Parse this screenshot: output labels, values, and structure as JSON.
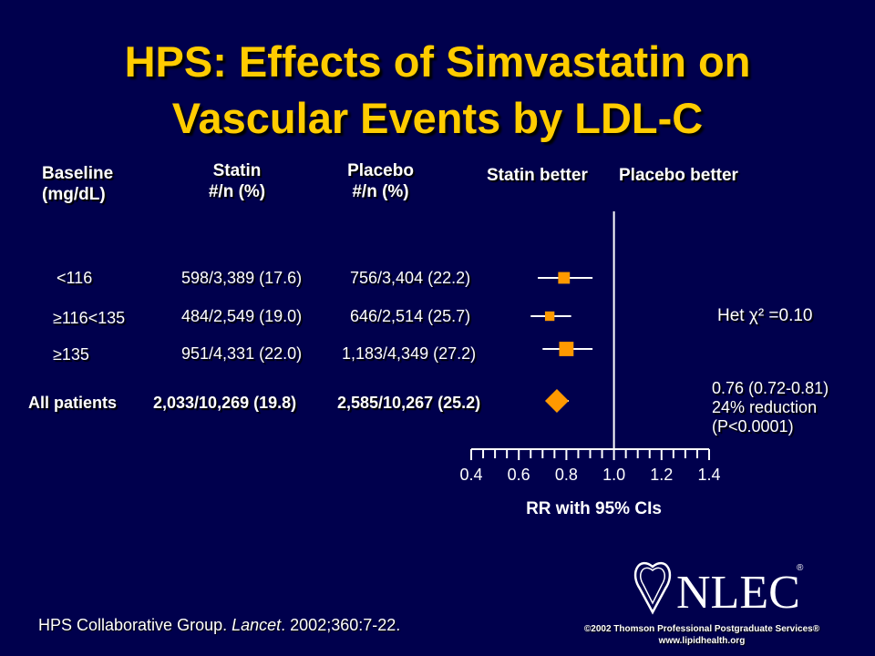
{
  "title_line1": "HPS: Effects of Simvastatin on",
  "title_line2": "Vascular Events by LDL-C",
  "headers": {
    "baseline": [
      "Baseline",
      "(mg/dL)"
    ],
    "statin": [
      "Statin",
      "#/n (%)"
    ],
    "placebo": [
      "Placebo",
      "#/n (%)"
    ],
    "statin_better": "Statin better",
    "placebo_better": "Placebo better"
  },
  "rows": [
    {
      "baseline": "<116",
      "statin": "598/3,389 (17.6)",
      "placebo": "756/3,404 (22.2)"
    },
    {
      "baseline": "≥116<135",
      "statin": "484/2,549 (19.0)",
      "placebo": "646/2,514 (25.7)"
    },
    {
      "baseline": "≥135",
      "statin": "951/4,331 (22.0)",
      "placebo": "1,183/4,349 (27.2)"
    },
    {
      "baseline": "All patients",
      "statin": "2,033/10,269 (19.8)",
      "placebo": "2,585/10,267 (25.2)"
    }
  ],
  "het_text": "Het  χ² =0.10",
  "summary_lines": [
    "0.76 (0.72-0.81)",
    "24% reduction",
    "(P<0.0001)"
  ],
  "chart_data": {
    "type": "forest",
    "xlabel": "RR with 95% CIs",
    "xlim": [
      0.4,
      1.4
    ],
    "ticks": [
      "0.4",
      "0.6",
      "0.8",
      "1.0",
      "1.2",
      "1.4"
    ],
    "reference_line": 1.0,
    "points": [
      {
        "label": "<116",
        "rr": 0.79,
        "lo": 0.68,
        "hi": 0.91,
        "shape": "square",
        "weight": 0.9
      },
      {
        "label": "≥116<135",
        "rr": 0.73,
        "lo": 0.65,
        "hi": 0.82,
        "shape": "square",
        "weight": 0.7
      },
      {
        "label": "≥135",
        "rr": 0.8,
        "lo": 0.7,
        "hi": 0.91,
        "shape": "square",
        "weight": 1.15
      },
      {
        "label": "All patients",
        "rr": 0.76,
        "lo": 0.72,
        "hi": 0.81,
        "shape": "diamond",
        "weight": 1.0
      }
    ],
    "marker_color": "#ff9900"
  },
  "citation": {
    "authors": "HPS Collaborative Group. ",
    "journal": "Lancet",
    "rest": ". 2002;360:7-22."
  },
  "logo_text": "NLEC",
  "copyright": "©2002 Thomson Professional Postgraduate Services®",
  "website": "www.lipidhealth.org"
}
